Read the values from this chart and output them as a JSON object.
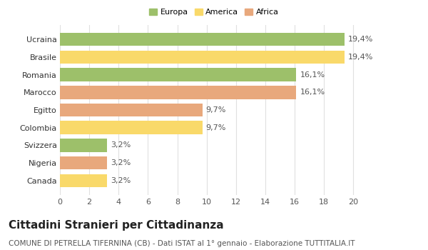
{
  "categories": [
    "Canada",
    "Nigeria",
    "Svizzera",
    "Colombia",
    "Egitto",
    "Marocco",
    "Romania",
    "Brasile",
    "Ucraina"
  ],
  "values": [
    3.2,
    3.2,
    3.2,
    9.7,
    9.7,
    16.1,
    16.1,
    19.4,
    19.4
  ],
  "labels": [
    "3,2%",
    "3,2%",
    "3,2%",
    "9,7%",
    "9,7%",
    "16,1%",
    "16,1%",
    "19,4%",
    "19,4%"
  ],
  "colors": [
    "#F9D96A",
    "#E8A87C",
    "#9DC06A",
    "#F9D96A",
    "#E8A87C",
    "#E8A87C",
    "#9DC06A",
    "#F9D96A",
    "#9DC06A"
  ],
  "legend": [
    {
      "label": "Europa",
      "color": "#9DC06A"
    },
    {
      "label": "America",
      "color": "#F9D96A"
    },
    {
      "label": "Africa",
      "color": "#E8A87C"
    }
  ],
  "xlim": [
    0,
    21
  ],
  "xticks": [
    0,
    2,
    4,
    6,
    8,
    10,
    12,
    14,
    16,
    18,
    20
  ],
  "title": "Cittadini Stranieri per Cittadinanza",
  "subtitle": "COMUNE DI PETRELLA TIFERNINA (CB) - Dati ISTAT al 1° gennaio - Elaborazione TUTTITALIA.IT",
  "background_color": "#ffffff",
  "grid_color": "#e0e0e0",
  "bar_height": 0.75,
  "label_fontsize": 8,
  "tick_fontsize": 8,
  "ylabel_fontsize": 9,
  "title_fontsize": 11,
  "subtitle_fontsize": 7.5
}
